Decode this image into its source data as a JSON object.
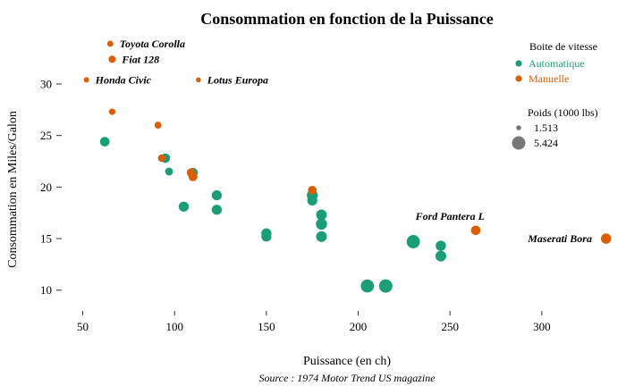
{
  "chart_data": {
    "type": "scatter",
    "title": "Consommation en fonction de la Puissance",
    "xlabel": "Puissance (en ch)",
    "ylabel": "Consommation en Miles/Galon",
    "caption": "Source : 1974 Motor Trend US magazine",
    "xlim": [
      40,
      340
    ],
    "ylim": [
      8.5,
      35.2
    ],
    "x_ticks": [
      50,
      100,
      150,
      200,
      250,
      300
    ],
    "y_ticks": [
      10,
      15,
      20,
      25,
      30
    ],
    "grid": false,
    "colors": {
      "Automatique": "#1b9e77",
      "Manuelle": "#d95f02"
    },
    "legend_color": {
      "title": "Boite de vitesse",
      "entries": [
        {
          "label": "Automatique",
          "color": "#1b9e77"
        },
        {
          "label": "Manuelle",
          "color": "#d95f02"
        }
      ]
    },
    "legend_size": {
      "title": "Poids  (1000 lbs)",
      "entries": [
        {
          "label": "1.513",
          "value": 1.513
        },
        {
          "label": "5.424",
          "value": 5.424
        }
      ]
    },
    "series": [
      {
        "name": "Automatique",
        "points": [
          {
            "x": 110,
            "y": 21.4,
            "wt": 3.215
          },
          {
            "x": 175,
            "y": 18.7,
            "wt": 3.44
          },
          {
            "x": 105,
            "y": 18.1,
            "wt": 3.46
          },
          {
            "x": 245,
            "y": 14.3,
            "wt": 3.57
          },
          {
            "x": 62,
            "y": 24.4,
            "wt": 3.19
          },
          {
            "x": 95,
            "y": 22.8,
            "wt": 3.15
          },
          {
            "x": 123,
            "y": 19.2,
            "wt": 3.44
          },
          {
            "x": 123,
            "y": 17.8,
            "wt": 3.44
          },
          {
            "x": 180,
            "y": 16.4,
            "wt": 4.07
          },
          {
            "x": 180,
            "y": 17.3,
            "wt": 3.73
          },
          {
            "x": 180,
            "y": 15.2,
            "wt": 3.78
          },
          {
            "x": 205,
            "y": 10.4,
            "wt": 5.25
          },
          {
            "x": 215,
            "y": 10.4,
            "wt": 5.424
          },
          {
            "x": 230,
            "y": 14.7,
            "wt": 5.345
          },
          {
            "x": 97,
            "y": 21.5,
            "wt": 2.465
          },
          {
            "x": 150,
            "y": 15.5,
            "wt": 3.52
          },
          {
            "x": 150,
            "y": 15.2,
            "wt": 3.435
          },
          {
            "x": 245,
            "y": 13.3,
            "wt": 3.84
          },
          {
            "x": 175,
            "y": 19.2,
            "wt": 3.845
          }
        ]
      },
      {
        "name": "Manuelle",
        "points": [
          {
            "x": 110,
            "y": 21.0,
            "wt": 2.62
          },
          {
            "x": 110,
            "y": 21.0,
            "wt": 2.875
          },
          {
            "x": 93,
            "y": 22.8,
            "wt": 2.32
          },
          {
            "x": 66,
            "y": 32.4,
            "wt": 2.2,
            "label": "Fiat 128"
          },
          {
            "x": 52,
            "y": 30.4,
            "wt": 1.615,
            "label": "Honda Civic"
          },
          {
            "x": 65,
            "y": 33.9,
            "wt": 1.835,
            "label": "Toyota Corolla"
          },
          {
            "x": 66,
            "y": 27.3,
            "wt": 1.935
          },
          {
            "x": 91,
            "y": 26.0,
            "wt": 2.14
          },
          {
            "x": 113,
            "y": 30.4,
            "wt": 1.513,
            "label": "Lotus Europa"
          },
          {
            "x": 264,
            "y": 15.8,
            "wt": 3.17,
            "label": "Ford Pantera L"
          },
          {
            "x": 175,
            "y": 19.7,
            "wt": 2.77
          },
          {
            "x": 335,
            "y": 15.0,
            "wt": 3.57,
            "label": "Maserati Bora"
          },
          {
            "x": 109,
            "y": 21.4,
            "wt": 2.78
          }
        ]
      }
    ]
  }
}
